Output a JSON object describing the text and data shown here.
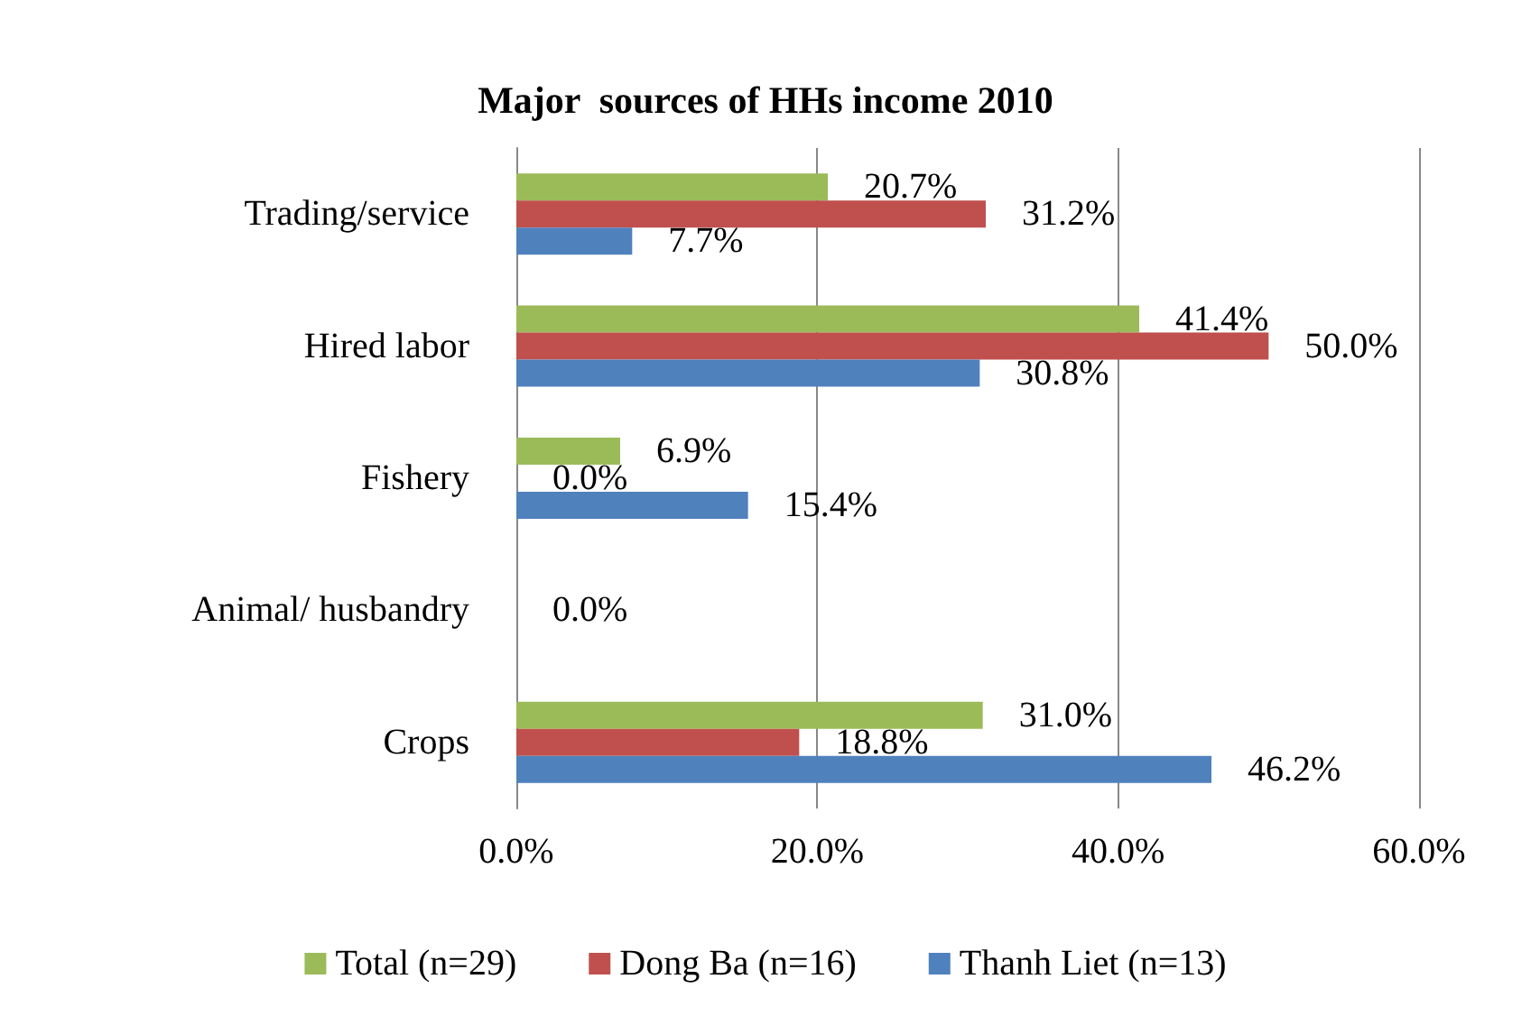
{
  "chart_data": {
    "type": "bar",
    "orientation": "horizontal",
    "title": "Major  sources of HHs income 2010",
    "categories": [
      "Trading/service",
      "Hired labor",
      "Fishery",
      "Animal/ husbandry",
      "Crops"
    ],
    "series": [
      {
        "name": "Total (n=29)",
        "color": "#9bbb59",
        "values": [
          20.7,
          41.4,
          6.9,
          0,
          31.0
        ],
        "value_labels": [
          "20.7%",
          "41.4%",
          "6.9%",
          null,
          "31.0%"
        ]
      },
      {
        "name": "Dong Ba (n=16)",
        "color": "#c0504d",
        "values": [
          31.2,
          50.0,
          0,
          0,
          18.8
        ],
        "value_labels": [
          "31.2%",
          "50.0%",
          "0.0%",
          "0.0%",
          "18.8%"
        ]
      },
      {
        "name": "Thanh Liet (n=13)",
        "color": "#4f81bd",
        "values": [
          7.7,
          30.8,
          15.4,
          0,
          46.2
        ],
        "value_labels": [
          "7.7%",
          "30.8%",
          "15.4%",
          null,
          "46.2%"
        ]
      }
    ],
    "xlim": [
      0,
      60
    ],
    "xticks": [
      {
        "value": 0,
        "label": "0.0%"
      },
      {
        "value": 20,
        "label": "20.0%"
      },
      {
        "value": 40,
        "label": "40.0%"
      },
      {
        "value": 60,
        "label": "60.0%"
      }
    ],
    "grid": "x",
    "legend": "bottom"
  }
}
